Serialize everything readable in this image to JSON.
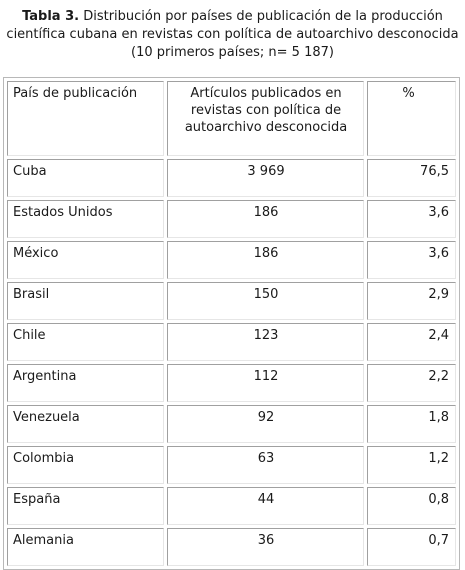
{
  "caption": {
    "label": "Tabla 3.",
    "text": " Distribución por países de publicación de la producción científica cubana en revistas con política de autoarchivo desconocida (10 primeros países; n= 5 187)"
  },
  "table": {
    "headers": {
      "country": "País de publicación",
      "count": "Artículos publicados en revistas con política de autoarchivo desconocida",
      "percent": "%"
    },
    "rows": [
      {
        "country": "Cuba",
        "count": "3 969",
        "percent": "76,5"
      },
      {
        "country": "Estados Unidos",
        "count": "186",
        "percent": "3,6"
      },
      {
        "country": "México",
        "count": "186",
        "percent": "3,6"
      },
      {
        "country": "Brasil",
        "count": "150",
        "percent": "2,9"
      },
      {
        "country": "Chile",
        "count": "123",
        "percent": "2,4"
      },
      {
        "country": "Argentina",
        "count": "112",
        "percent": "2,2"
      },
      {
        "country": "Venezuela",
        "count": "92",
        "percent": "1,8"
      },
      {
        "country": "Colombia",
        "count": "63",
        "percent": "1,2"
      },
      {
        "country": "España",
        "count": "44",
        "percent": "0,8"
      },
      {
        "country": "Alemania",
        "count": "36",
        "percent": "0,7"
      }
    ]
  }
}
